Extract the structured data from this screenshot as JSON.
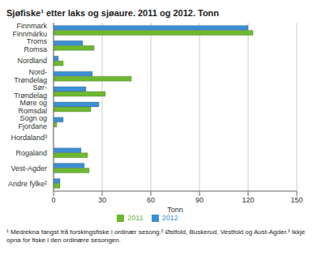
{
  "chart_data": {
    "type": "bar",
    "orientation": "horizontal",
    "title": "Sjøfiske¹ etter laks og sjøaure. 2011 og 2012. Tonn",
    "x_label": "Tonn",
    "categories": [
      "Finnmark\nFinnmárku",
      "Troms\nRomsa",
      "Nordland",
      "Nord-\nTrøndelag",
      "Sør-\nTrøndelag",
      "Møre og\nRomsdal",
      "Sogn og\nFjordane",
      "Hordaland³",
      "Rogaland",
      "Vest-Agder",
      "Andre fylke²"
    ],
    "series": [
      {
        "name": "2012",
        "color": "#3c8fd3",
        "values": [
          120,
          18,
          3,
          24,
          20,
          28,
          6,
          0,
          17,
          19,
          4
        ]
      },
      {
        "name": "2011",
        "color": "#6cb92f",
        "values": [
          123,
          25,
          6,
          48,
          32,
          23,
          2,
          0,
          21,
          22,
          4
        ]
      }
    ],
    "xlim": [
      0,
      150
    ],
    "xticks": [
      0,
      30,
      60,
      90,
      120,
      150
    ],
    "grid": true,
    "legend": "bottom",
    "annotations": [
      "¹ Medrekna fangst frå forskingsfiske i ordinær sesong.² Østfold, Buskerud, Vestfold og Aust-Agder.³ Ikkje opna for fiske i den ordinære sesongen."
    ]
  }
}
